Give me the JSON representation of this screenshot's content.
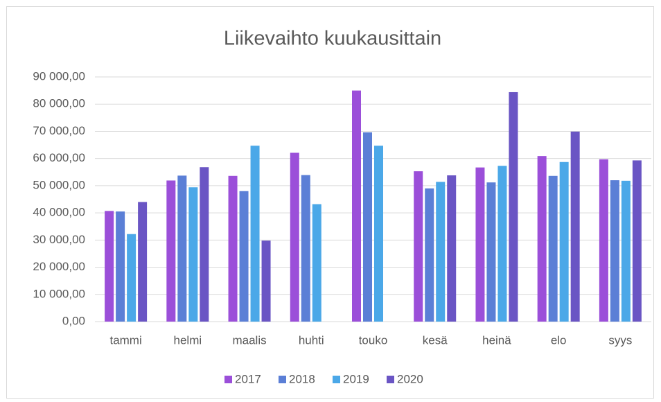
{
  "chart_data": {
    "type": "bar",
    "title": "Liikevaihto kuukausittain",
    "categories": [
      "tammi",
      "helmi",
      "maalis",
      "huhti",
      "touko",
      "kesä",
      "heinä",
      "elo",
      "syys"
    ],
    "series": [
      {
        "name": "2017",
        "color": "#9b4fd9",
        "values": [
          40700,
          51900,
          53600,
          62100,
          85000,
          55300,
          56700,
          60900,
          59700
        ]
      },
      {
        "name": "2018",
        "color": "#5b7fd6",
        "values": [
          40500,
          53700,
          48000,
          53900,
          69600,
          49000,
          51200,
          53600,
          52000
        ]
      },
      {
        "name": "2019",
        "color": "#4ba8e8",
        "values": [
          32200,
          49400,
          64700,
          43200,
          64700,
          51400,
          57300,
          58700,
          51800
        ]
      },
      {
        "name": "2020",
        "color": "#6a55c4",
        "values": [
          44000,
          56800,
          29800,
          null,
          null,
          53800,
          84400,
          69900,
          59300
        ]
      }
    ],
    "ylim": [
      0,
      90000
    ],
    "yticks": [
      {
        "value": 0,
        "label": "0,00"
      },
      {
        "value": 10000,
        "label": "10 000,00"
      },
      {
        "value": 20000,
        "label": "20 000,00"
      },
      {
        "value": 30000,
        "label": "30 000,00"
      },
      {
        "value": 40000,
        "label": "40 000,00"
      },
      {
        "value": 50000,
        "label": "50 000,00"
      },
      {
        "value": 60000,
        "label": "60 000,00"
      },
      {
        "value": 70000,
        "label": "70 000,00"
      },
      {
        "value": 80000,
        "label": "80 000,00"
      },
      {
        "value": 90000,
        "label": "90 000,00"
      }
    ],
    "grid": true,
    "legend": "bottom"
  }
}
